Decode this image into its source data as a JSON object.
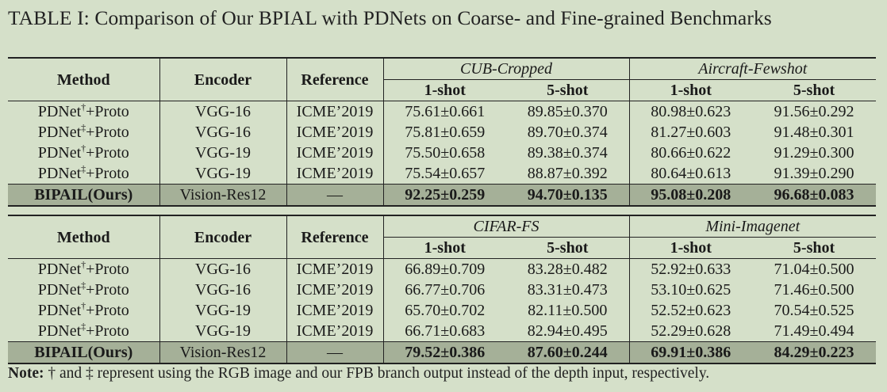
{
  "caption": "TABLE I: Comparison of Our BPIAL with PDNets on Coarse- and Fine-grained Benchmarks",
  "headers": {
    "method": "Method",
    "encoder": "Encoder",
    "reference": "Reference",
    "shot1": "1-shot",
    "shot5": "5-shot"
  },
  "table1": {
    "dataset_a": "CUB-Cropped",
    "dataset_b": "Aircraft-Fewshot",
    "rows": [
      {
        "method": "PDNet",
        "mark": "†",
        "suffix": "+Proto",
        "encoder": "VGG-16",
        "reference": "ICME’2019",
        "a1": "75.61±0.661",
        "a5": "89.85±0.370",
        "b1": "80.98±0.623",
        "b5": "91.56±0.292"
      },
      {
        "method": "PDNet",
        "mark": "‡",
        "suffix": "+Proto",
        "encoder": "VGG-16",
        "reference": "ICME’2019",
        "a1": "75.81±0.659",
        "a5": "89.70±0.374",
        "b1": "81.27±0.603",
        "b5": "91.48±0.301"
      },
      {
        "method": "PDNet",
        "mark": "†",
        "suffix": "+Proto",
        "encoder": "VGG-19",
        "reference": "ICME’2019",
        "a1": "75.50±0.658",
        "a5": "89.38±0.374",
        "b1": "80.66±0.622",
        "b5": "91.29±0.300"
      },
      {
        "method": "PDNet",
        "mark": "‡",
        "suffix": "+Proto",
        "encoder": "VGG-19",
        "reference": "ICME’2019",
        "a1": "75.54±0.657",
        "a5": "88.87±0.392",
        "b1": "80.64±0.613",
        "b5": "91.39±0.290"
      }
    ],
    "ours": {
      "method": "BIPAIL(Ours)",
      "encoder": "Vision-Res12",
      "reference": "—",
      "a1": "92.25±0.259",
      "a5": "94.70±0.135",
      "b1": "95.08±0.208",
      "b5": "96.68±0.083"
    }
  },
  "table2": {
    "dataset_a": "CIFAR-FS",
    "dataset_b": "Mini-Imagenet",
    "rows": [
      {
        "method": "PDNet",
        "mark": "†",
        "suffix": "+Proto",
        "encoder": "VGG-16",
        "reference": "ICME’2019",
        "a1": "66.89±0.709",
        "a5": "83.28±0.482",
        "b1": "52.92±0.633",
        "b5": "71.04±0.500"
      },
      {
        "method": "PDNet",
        "mark": "‡",
        "suffix": "+Proto",
        "encoder": "VGG-16",
        "reference": "ICME’2019",
        "a1": "66.77±0.706",
        "a5": "83.31±0.473",
        "b1": "53.10±0.625",
        "b5": "71.46±0.500"
      },
      {
        "method": "PDNet",
        "mark": "†",
        "suffix": "+Proto",
        "encoder": "VGG-19",
        "reference": "ICME’2019",
        "a1": "65.70±0.702",
        "a5": "82.11±0.500",
        "b1": "52.52±0.623",
        "b5": "70.54±0.525"
      },
      {
        "method": "PDNet",
        "mark": "‡",
        "suffix": "+Proto",
        "encoder": "VGG-19",
        "reference": "ICME’2019",
        "a1": "66.71±0.683",
        "a5": "82.94±0.495",
        "b1": "52.29±0.628",
        "b5": "71.49±0.494"
      }
    ],
    "ours": {
      "method": "BIPAIL(Ours)",
      "encoder": "Vision-Res12",
      "reference": "—",
      "a1": "79.52±0.386",
      "a5": "87.60±0.244",
      "b1": "69.91±0.386",
      "b5": "84.29±0.223"
    }
  },
  "note": {
    "label": "Note:",
    "text": "† and ‡ represent using the RGB image and our FPB branch output instead of the depth input, respectively."
  }
}
